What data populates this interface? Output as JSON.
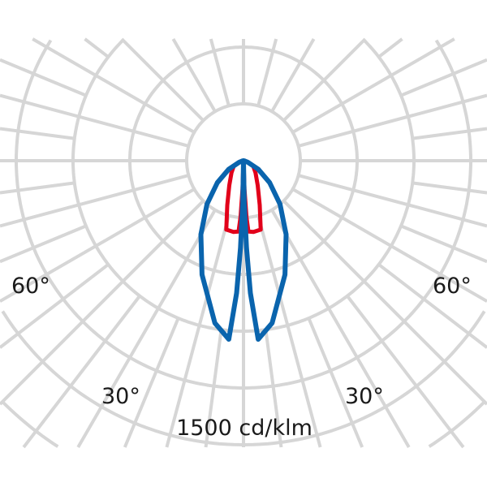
{
  "chart_data": {
    "type": "polar",
    "unit_label": "1500 cd/klm",
    "ring_step": 300,
    "ring_count": 6,
    "spoke_step_deg": 15,
    "angle_labels": {
      "left_60": "60°",
      "right_60": "60°",
      "left_30": "30°",
      "right_30": "30°"
    },
    "grid": true,
    "series": [
      {
        "color": "#0a64ad",
        "angles": [
          0,
          1,
          2,
          3,
          4.7,
          10,
          20,
          30,
          40,
          50,
          60,
          70,
          80,
          90
        ],
        "values": [
          0,
          220,
          460,
          700,
          946,
          870,
          640,
          450,
          300,
          180,
          90,
          25,
          5,
          0
        ]
      },
      {
        "color": "#e2001a",
        "angles": [
          0,
          2,
          3,
          4,
          8,
          14,
          20,
          30,
          45,
          60,
          75,
          90
        ],
        "values": [
          0,
          150,
          300,
          375,
          380,
          375,
          250,
          150,
          90,
          60,
          20,
          0
        ]
      }
    ]
  }
}
